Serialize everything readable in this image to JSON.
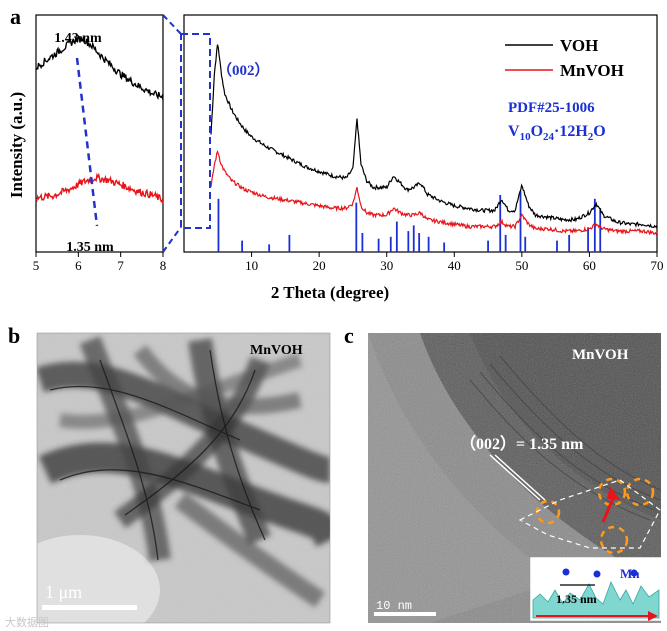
{
  "panels": {
    "a": {
      "label": "a"
    },
    "b": {
      "label": "b",
      "sample": "MnVOH",
      "scale_bar": "1 μm"
    },
    "c": {
      "label": "c",
      "sample": "MnVOH",
      "scale_bar": "10 nm",
      "lattice_annotation": "（002）= 1.35 nm",
      "inset_spacing": "1.35 nm",
      "inset_element": "Mn"
    }
  },
  "watermark": "大数据图",
  "colors": {
    "voh": "#000000",
    "mnvoh": "#e8141a",
    "pdf": "#1b2fd6",
    "guide": "#2233cc"
  },
  "chart_data": {
    "type": "line",
    "title": "",
    "ylabel": "Intensity (a.u.)",
    "xlabel": "2 Theta (degree)",
    "legend": {
      "position": "top-right",
      "entries": [
        "VOH",
        "MnVOH"
      ]
    },
    "reference": {
      "name": "PDF#25-1006",
      "formula": [
        "V",
        "10",
        "O",
        "24",
        "·12H",
        "2",
        "O"
      ]
    },
    "peak_label": "（002）",
    "inset": {
      "xlim": [
        5,
        8
      ],
      "xticks": [
        "5",
        "6",
        "7",
        "8"
      ],
      "peak_labels": [
        "1.43 nm",
        "1.35 nm"
      ],
      "series": [
        {
          "name": "VOH",
          "x": [
            5.0,
            5.3,
            5.6,
            5.9,
            6.1,
            6.3,
            6.6,
            7.0,
            7.4,
            7.8,
            8.0
          ],
          "y": [
            82,
            86,
            90,
            94,
            95,
            92,
            86,
            79,
            74,
            70,
            69
          ]
        },
        {
          "name": "MnVOH",
          "x": [
            5.0,
            5.4,
            5.8,
            6.1,
            6.4,
            6.7,
            7.0,
            7.4,
            7.8,
            8.0
          ],
          "y": [
            24,
            25,
            28,
            31,
            33,
            32,
            30,
            27,
            25,
            23
          ]
        }
      ]
    },
    "main": {
      "xlim": [
        0,
        70
      ],
      "xticks": [
        "10",
        "20",
        "30",
        "40",
        "50",
        "60",
        "70"
      ],
      "series": [
        {
          "name": "VOH",
          "x": [
            4,
            4.5,
            5,
            5.5,
            6,
            7,
            8,
            9,
            10,
            12,
            14,
            16,
            18,
            20,
            22,
            24,
            25,
            25.6,
            26.2,
            27,
            28,
            30,
            31,
            32,
            33,
            34,
            35,
            36,
            38,
            40,
            42,
            44,
            46,
            47,
            48,
            49,
            50,
            51,
            52,
            54,
            56,
            58,
            60,
            61,
            62,
            64,
            66,
            68,
            70
          ],
          "y": [
            45,
            72,
            85,
            72,
            63,
            56,
            51,
            47,
            44,
            40,
            37,
            34,
            31,
            29,
            27,
            26,
            30,
            52,
            32,
            25,
            22,
            22,
            27,
            24,
            21,
            22,
            24,
            19,
            16,
            14,
            13,
            12,
            12,
            17,
            12,
            12,
            23,
            14,
            10,
            9,
            8,
            8,
            11,
            15,
            10,
            7,
            6,
            6,
            5
          ]
        },
        {
          "name": "MnVOH",
          "x": [
            4,
            4.5,
            5,
            5.5,
            6,
            7,
            8,
            9,
            10,
            12,
            14,
            16,
            18,
            20,
            22,
            24,
            25,
            25.6,
            26.2,
            27,
            28,
            30,
            31,
            32,
            33,
            34,
            35,
            36,
            38,
            40,
            42,
            44,
            46,
            47,
            48,
            49,
            50,
            51,
            52,
            54,
            56,
            58,
            60,
            61,
            62,
            64,
            66,
            68,
            70
          ],
          "y": [
            22,
            32,
            38,
            32,
            29,
            25,
            23,
            21,
            20,
            18,
            17,
            16,
            15,
            14,
            13,
            13,
            15,
            22,
            14,
            11,
            10,
            10,
            13,
            11,
            10,
            10,
            11,
            8,
            7,
            6,
            5,
            5,
            5,
            7,
            5,
            5,
            10,
            6,
            4,
            4,
            3,
            3,
            4,
            6,
            4,
            3,
            3,
            3,
            2
          ]
        }
      ],
      "pdf_sticks": [
        {
          "x": 5.1,
          "h": 28
        },
        {
          "x": 8.6,
          "h": 6
        },
        {
          "x": 12.6,
          "h": 4
        },
        {
          "x": 15.6,
          "h": 9
        },
        {
          "x": 25.5,
          "h": 26
        },
        {
          "x": 26.4,
          "h": 10
        },
        {
          "x": 28.8,
          "h": 7
        },
        {
          "x": 30.6,
          "h": 8
        },
        {
          "x": 31.5,
          "h": 16
        },
        {
          "x": 33.2,
          "h": 11
        },
        {
          "x": 34.0,
          "h": 14
        },
        {
          "x": 34.8,
          "h": 10
        },
        {
          "x": 36.2,
          "h": 8
        },
        {
          "x": 38.5,
          "h": 5
        },
        {
          "x": 45.0,
          "h": 6
        },
        {
          "x": 46.8,
          "h": 30
        },
        {
          "x": 47.6,
          "h": 9
        },
        {
          "x": 49.8,
          "h": 32
        },
        {
          "x": 50.5,
          "h": 8
        },
        {
          "x": 55.2,
          "h": 6
        },
        {
          "x": 57.0,
          "h": 9
        },
        {
          "x": 59.8,
          "h": 13
        },
        {
          "x": 60.8,
          "h": 28
        },
        {
          "x": 61.6,
          "h": 23
        }
      ]
    }
  }
}
